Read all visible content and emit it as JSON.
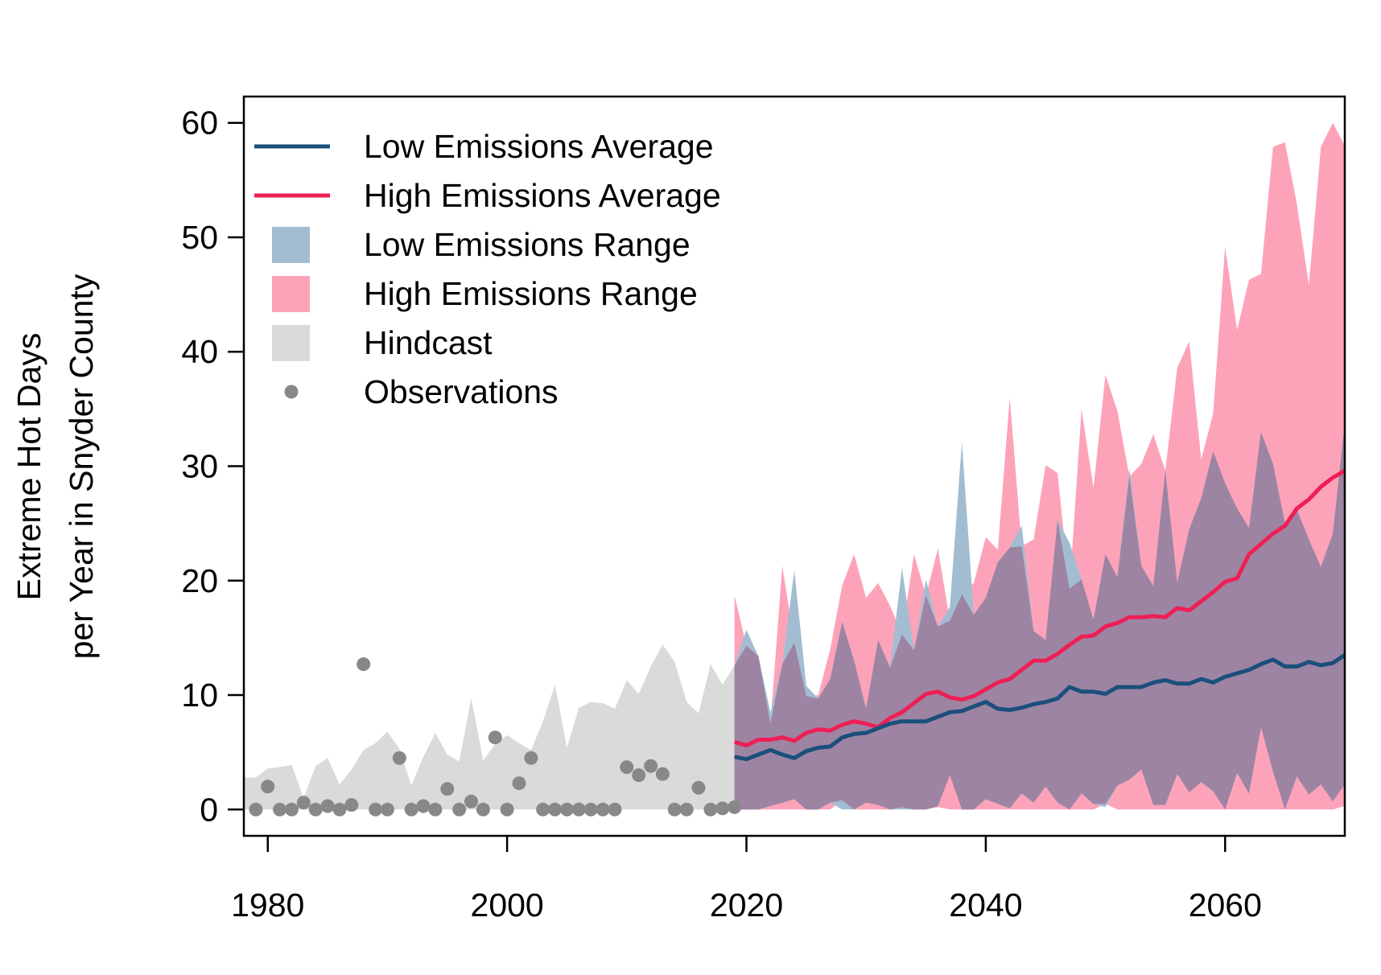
{
  "chart_data": {
    "type": "area",
    "title": "",
    "xlabel": "",
    "ylabel": [
      "Extreme Hot Days",
      "per Year in Snyder County"
    ],
    "xlim": [
      1978,
      2070
    ],
    "ylim": [
      -2.3,
      62.3
    ],
    "x_ticks": [
      1980,
      2000,
      2020,
      2040,
      2060
    ],
    "y_ticks": [
      0,
      10,
      20,
      30,
      40,
      50,
      60
    ],
    "grid": false,
    "legend_position": "top-left",
    "colors": {
      "low_line": "#1b4f7c",
      "high_line": "#ee1f55",
      "low_range": "#a2bdd2",
      "high_range": "#fda3b9",
      "overlap_range": "#9e84a3",
      "hindcast": "#dadada",
      "observations": "#888888"
    },
    "legend": [
      {
        "label": "Low Emissions Average",
        "kind": "line",
        "key": "low_line"
      },
      {
        "label": "High Emissions Average",
        "kind": "line",
        "key": "high_line"
      },
      {
        "label": "Low Emissions Range",
        "kind": "box",
        "key": "low_range"
      },
      {
        "label": "High Emissions Range",
        "kind": "box",
        "key": "high_range"
      },
      {
        "label": "Hindcast",
        "kind": "box",
        "key": "hindcast"
      },
      {
        "label": "Observations",
        "kind": "point",
        "key": "observations"
      }
    ],
    "hindcast": {
      "x": [
        1978,
        1979,
        1980,
        1981,
        1982,
        1983,
        1984,
        1985,
        1986,
        1987,
        1988,
        1989,
        1990,
        1991,
        1992,
        1993,
        1994,
        1995,
        1996,
        1997,
        1998,
        1999,
        2000,
        2001,
        2002,
        2003,
        2004,
        2005,
        2006,
        2007,
        2008,
        2009,
        2010,
        2011,
        2012,
        2013,
        2014,
        2015,
        2016,
        2017,
        2018,
        2019
      ],
      "upper": [
        2.8,
        2.8,
        3.6,
        3.7,
        3.9,
        1.0,
        3.8,
        4.5,
        2.2,
        3.5,
        5.2,
        5.8,
        6.8,
        5.3,
        2.1,
        4.6,
        6.7,
        4.8,
        4.2,
        9.7,
        4.3,
        5.7,
        6.5,
        5.8,
        5.2,
        7.7,
        10.9,
        5.4,
        8.9,
        9.4,
        9.3,
        8.8,
        11.3,
        10.1,
        12.5,
        14.4,
        12.9,
        9.4,
        8.4,
        12.7,
        10.9,
        12.6
      ],
      "lower": [
        0,
        0,
        0,
        0,
        0,
        0,
        0,
        0,
        0,
        0,
        0,
        0,
        0,
        0,
        0,
        0,
        0,
        0,
        0,
        0,
        0,
        0,
        0,
        0,
        0,
        0,
        0,
        0,
        0,
        0,
        0,
        0,
        0,
        0,
        0,
        0,
        0,
        0,
        0,
        0,
        0,
        0
      ]
    },
    "observations": {
      "x": [
        1979,
        1980,
        1981,
        1982,
        1983,
        1984,
        1985,
        1986,
        1987,
        1988,
        1989,
        1990,
        1991,
        1992,
        1993,
        1994,
        1995,
        1996,
        1997,
        1998,
        1999,
        2000,
        2001,
        2002,
        2003,
        2004,
        2005,
        2006,
        2007,
        2008,
        2009,
        2010,
        2011,
        2012,
        2013,
        2014,
        2015,
        2016,
        2017,
        2018,
        2019
      ],
      "y": [
        0,
        2.0,
        0,
        0,
        0.6,
        0,
        0.3,
        0,
        0.4,
        12.7,
        0,
        0,
        4.5,
        0,
        0.3,
        0,
        1.8,
        0,
        0.7,
        0,
        6.3,
        0,
        2.3,
        4.5,
        0,
        0,
        0,
        0,
        0,
        0,
        0,
        3.7,
        3.0,
        3.8,
        3.1,
        0,
        0,
        1.9,
        0,
        0.1,
        0.2
      ]
    },
    "projection_x": [
      2019,
      2020,
      2021,
      2022,
      2023,
      2024,
      2025,
      2026,
      2027,
      2028,
      2029,
      2030,
      2031,
      2032,
      2033,
      2034,
      2035,
      2036,
      2037,
      2038,
      2039,
      2040,
      2041,
      2042,
      2043,
      2044,
      2045,
      2046,
      2047,
      2048,
      2049,
      2050,
      2051,
      2052,
      2053,
      2054,
      2055,
      2056,
      2057,
      2058,
      2059,
      2060,
      2061,
      2062,
      2063,
      2064,
      2065,
      2066,
      2067,
      2068,
      2069,
      2070
    ],
    "series": [
      {
        "name": "Low Emissions Average",
        "values": [
          4.6,
          4.4,
          4.8,
          5.2,
          4.8,
          4.5,
          5.1,
          5.4,
          5.5,
          6.3,
          6.6,
          6.7,
          7.1,
          7.5,
          7.7,
          7.7,
          7.7,
          8.1,
          8.5,
          8.6,
          9.0,
          9.4,
          8.8,
          8.7,
          8.9,
          9.2,
          9.4,
          9.7,
          10.7,
          10.3,
          10.3,
          10.1,
          10.7,
          10.7,
          10.7,
          11.1,
          11.3,
          11.0,
          11.0,
          11.4,
          11.1,
          11.6,
          11.9,
          12.2,
          12.7,
          13.1,
          12.5,
          12.5,
          12.9,
          12.6,
          12.8,
          13.5
        ]
      },
      {
        "name": "High Emissions Average",
        "values": [
          5.9,
          5.6,
          6.1,
          6.1,
          6.3,
          6.0,
          6.7,
          7.0,
          6.9,
          7.4,
          7.7,
          7.5,
          7.2,
          8.0,
          8.5,
          9.3,
          10.1,
          10.3,
          9.8,
          9.6,
          9.9,
          10.5,
          11.1,
          11.4,
          12.2,
          13.0,
          13.0,
          13.6,
          14.4,
          15.1,
          15.2,
          16.0,
          16.3,
          16.8,
          16.8,
          16.9,
          16.8,
          17.6,
          17.4,
          18.2,
          19.0,
          19.9,
          20.2,
          22.3,
          23.2,
          24.1,
          24.8,
          26.3,
          27.1,
          28.2,
          29.0,
          29.6
        ]
      },
      {
        "name": "Low Emissions Range",
        "upper": [
          12.6,
          15.7,
          13.4,
          8.5,
          12.7,
          20.9,
          10.8,
          9.7,
          11.4,
          16.4,
          13.0,
          8.8,
          14.8,
          12.4,
          21.1,
          13.9,
          20.1,
          16.0,
          17.7,
          32.1,
          17.0,
          18.5,
          21.6,
          22.9,
          24.8,
          15.6,
          14.8,
          25.3,
          23.3,
          20.1,
          16.6,
          22.3,
          20.3,
          29.8,
          21.3,
          19.5,
          29.7,
          19.8,
          24.5,
          27.2,
          31.3,
          28.5,
          26.3,
          24.6,
          33.0,
          30.2,
          25.0,
          26.2,
          23.6,
          21.2,
          24.1,
          33.8
        ],
        "lower": [
          0,
          0,
          0,
          0.3,
          0.6,
          0.9,
          0,
          0,
          0.6,
          0,
          0,
          0.6,
          0.4,
          0,
          0,
          0,
          0,
          0.3,
          3.0,
          0,
          0,
          0.9,
          0.5,
          0.1,
          1.4,
          0.6,
          2.0,
          0.6,
          0,
          1.4,
          0.5,
          0.2,
          2.1,
          2.6,
          3.5,
          0.4,
          0.4,
          3.1,
          1.5,
          2.4,
          1.6,
          0,
          3.2,
          1.4,
          7.2,
          3.3,
          0,
          2.9,
          1.3,
          2.2,
          0.7,
          2.2
        ]
      },
      {
        "name": "High Emissions Range",
        "upper": [
          18.7,
          14.3,
          13.4,
          7.5,
          21.3,
          14.6,
          9.9,
          10.0,
          14.0,
          19.6,
          22.3,
          18.5,
          19.8,
          17.8,
          15.3,
          22.3,
          18.7,
          22.8,
          16.5,
          18.8,
          19.8,
          23.8,
          22.7,
          36.0,
          23.0,
          23.6,
          30.1,
          29.4,
          19.3,
          35.0,
          28.1,
          38.0,
          34.8,
          29.1,
          30.2,
          32.8,
          29.6,
          38.6,
          40.9,
          30.6,
          34.6,
          49.2,
          41.9,
          46.3,
          46.8,
          57.9,
          58.3,
          52.9,
          45.8,
          57.9,
          60.0,
          58.0
        ],
        "lower": [
          0,
          0,
          0,
          0,
          0,
          0,
          0,
          0,
          0,
          0.8,
          0,
          0,
          0,
          0,
          0.2,
          0,
          0,
          0.2,
          0,
          0,
          0,
          0,
          0,
          0,
          0,
          0,
          0,
          0,
          0,
          0,
          0,
          0.5,
          0,
          0,
          0,
          0,
          0,
          0,
          0,
          0,
          0,
          0,
          0,
          0,
          0,
          0,
          0,
          0,
          0,
          0,
          0,
          0.3
        ]
      }
    ]
  }
}
